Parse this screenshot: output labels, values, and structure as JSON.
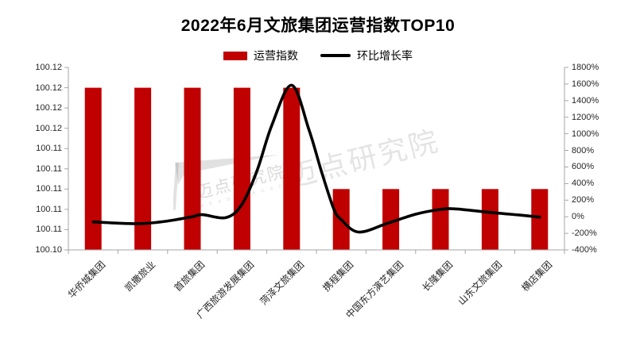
{
  "title": "2022年6月文旅集团运营指数TOP10",
  "legend": {
    "bar_label": "运营指数",
    "line_label": "环比增长率"
  },
  "watermark": {
    "text": "迈点研究院",
    "subtext": "M E A D I N   A C A D E M Y"
  },
  "chart_data": {
    "type": "bar",
    "subtype": "bar+line-combo",
    "title": "2022年6月文旅集团运营指数TOP10",
    "categories": [
      "华侨城集团",
      "凯撒旅业",
      "首旅集团",
      "广西旅游发展集团",
      "菏泽文旅集团",
      "携程集团",
      "中国东方演艺集团",
      "长隆集团",
      "山东文旅集团",
      "横店集团"
    ],
    "series": [
      {
        "name": "运营指数",
        "type": "bar",
        "axis": "left",
        "color": "#C00000",
        "values": [
          100.12,
          100.12,
          100.12,
          100.12,
          100.12,
          100.11,
          100.11,
          100.11,
          100.11,
          100.11
        ]
      },
      {
        "name": "环比增长率",
        "type": "line",
        "axis": "right",
        "color": "#000000",
        "values": [
          -60,
          -80,
          0,
          150,
          1590,
          -50,
          -80,
          90,
          50,
          0
        ]
      }
    ],
    "left_axis": {
      "min": 100.104,
      "max": 100.122,
      "tick_labels": [
        "100.12",
        "100.12",
        "100.12",
        "100.12",
        "100.11",
        "100.11",
        "100.11",
        "100.11",
        "100.11",
        "100.10"
      ]
    },
    "right_axis": {
      "min": -400,
      "max": 1800,
      "tick_labels": [
        "1800%",
        "1600%",
        "1400%",
        "1200%",
        "1000%",
        "800%",
        "600%",
        "400%",
        "200%",
        "0%",
        "-200%",
        "-400%"
      ]
    },
    "line_shape": [
      [
        0,
        -62
      ],
      [
        0.5,
        -78
      ],
      [
        1,
        -82
      ],
      [
        1.5,
        -52
      ],
      [
        2,
        0
      ],
      [
        2.2,
        25
      ],
      [
        2.68,
        -10
      ],
      [
        3,
        150
      ],
      [
        3.3,
        550
      ],
      [
        3.6,
        1100
      ],
      [
        4,
        1586
      ],
      [
        4.35,
        1050
      ],
      [
        4.6,
        550
      ],
      [
        4.85,
        95
      ],
      [
        5,
        -35
      ],
      [
        5.35,
        -185
      ],
      [
        5.93,
        -80
      ],
      [
        6.5,
        30
      ],
      [
        7,
        88
      ],
      [
        7.3,
        95
      ],
      [
        8,
        52
      ],
      [
        8.6,
        20
      ],
      [
        9,
        -5
      ]
    ],
    "grid": false,
    "legend_position": "top",
    "axis_line_color": "#A6A6A6",
    "label_color": "#262626"
  }
}
